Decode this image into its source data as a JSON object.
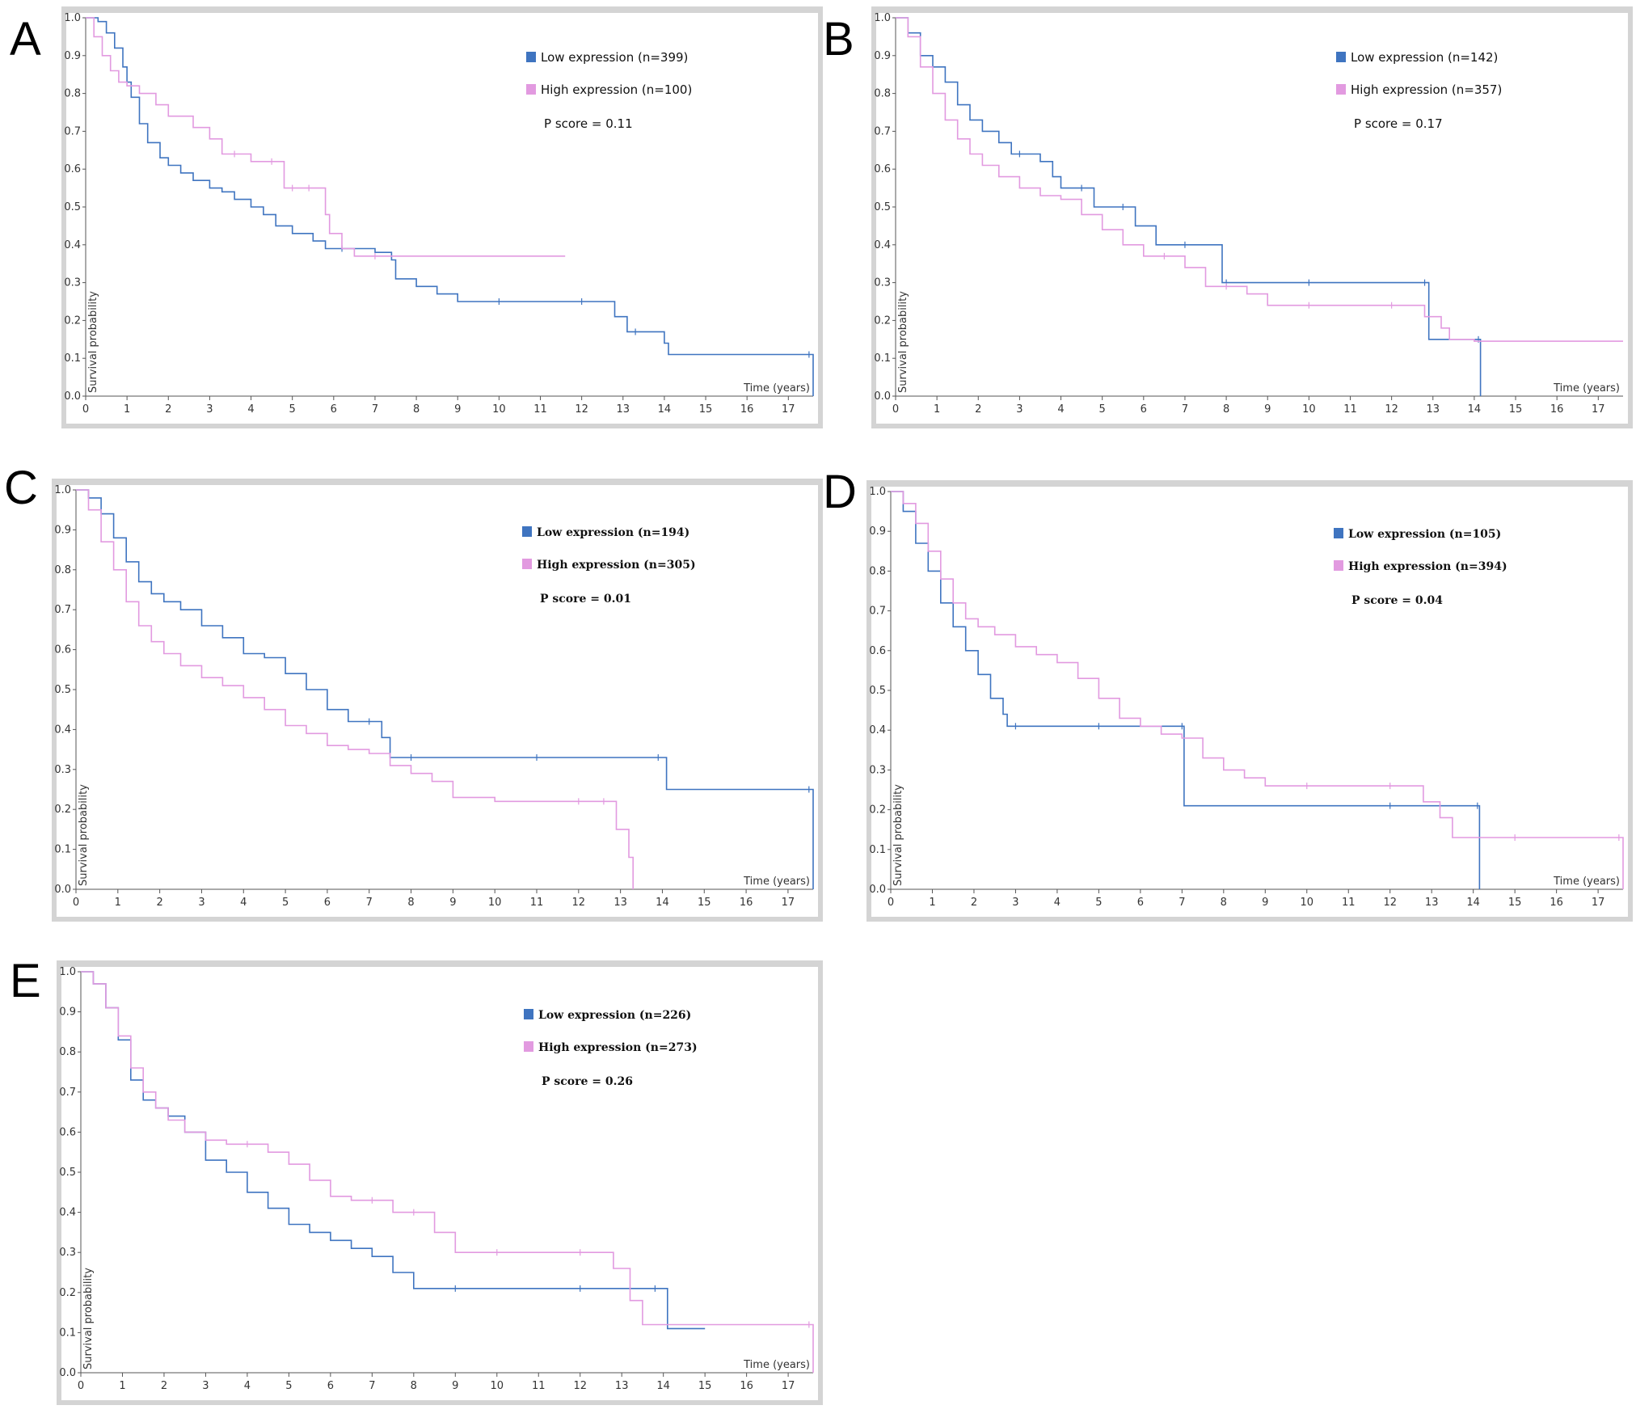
{
  "colors": {
    "low": "#3f74c0",
    "high": "#e29ae0",
    "frame": "#d4d4d4",
    "plot_bg": "#ffffff"
  },
  "chart_data": [
    {
      "panel": "A",
      "type": "line",
      "subtype": "kaplan-meier",
      "xlabel": "Time (years)",
      "ylabel": "Survival probability",
      "xlim": [
        0,
        17.6
      ],
      "ylim": [
        0,
        1
      ],
      "xticks": [
        0,
        1,
        2,
        3,
        4,
        5,
        6,
        7,
        8,
        9,
        10,
        11,
        12,
        13,
        14,
        15,
        16,
        17
      ],
      "yticks": [
        "0.0",
        "0.1",
        "0.2",
        "0.3",
        "0.4",
        "0.5",
        "0.6",
        "0.7",
        "0.8",
        "0.9",
        "1.0"
      ],
      "legend": {
        "low": "Low expression (n=399)",
        "high": "High expression (n=100)",
        "p": "P score = 0.11"
      },
      "series": [
        {
          "name": "Low expression (n=399)",
          "color_key": "low",
          "x": [
            0,
            0.3,
            0.5,
            0.7,
            0.9,
            1.0,
            1.1,
            1.3,
            1.5,
            1.8,
            2.0,
            2.3,
            2.6,
            3.0,
            3.3,
            3.6,
            4.0,
            4.3,
            4.6,
            5.0,
            5.5,
            5.8,
            6.2,
            7.0,
            7.4,
            7.5,
            8.0,
            8.5,
            9.0,
            10.0,
            12.0,
            12.8,
            13.1,
            13.3,
            14.0,
            14.1,
            17.5,
            17.6
          ],
          "y": [
            1.0,
            0.99,
            0.96,
            0.92,
            0.87,
            0.83,
            0.79,
            0.72,
            0.67,
            0.63,
            0.61,
            0.59,
            0.57,
            0.55,
            0.54,
            0.52,
            0.5,
            0.48,
            0.45,
            0.43,
            0.41,
            0.39,
            0.39,
            0.38,
            0.36,
            0.31,
            0.29,
            0.27,
            0.25,
            0.25,
            0.25,
            0.21,
            0.17,
            0.17,
            0.14,
            0.11,
            0.11,
            0.0
          ]
        },
        {
          "name": "High expression (n=100)",
          "color_key": "high",
          "x": [
            0,
            0.2,
            0.4,
            0.6,
            0.8,
            1.0,
            1.3,
            1.7,
            2.0,
            2.6,
            3.0,
            3.3,
            3.6,
            4.0,
            4.5,
            4.8,
            5.0,
            5.4,
            5.8,
            5.9,
            6.2,
            6.5,
            7.0,
            11.6
          ],
          "y": [
            1.0,
            0.95,
            0.9,
            0.86,
            0.83,
            0.82,
            0.8,
            0.77,
            0.74,
            0.71,
            0.68,
            0.64,
            0.64,
            0.62,
            0.62,
            0.55,
            0.55,
            0.55,
            0.48,
            0.43,
            0.39,
            0.37,
            0.37,
            0.37
          ]
        }
      ]
    },
    {
      "panel": "B",
      "type": "line",
      "subtype": "kaplan-meier",
      "xlabel": "Time (years)",
      "ylabel": "Survival probability",
      "xlim": [
        0,
        17.6
      ],
      "ylim": [
        0,
        1
      ],
      "xticks": [
        0,
        1,
        2,
        3,
        4,
        5,
        6,
        7,
        8,
        9,
        10,
        11,
        12,
        13,
        14,
        15,
        16,
        17
      ],
      "yticks": [
        "0.0",
        "0.1",
        "0.2",
        "0.3",
        "0.4",
        "0.5",
        "0.6",
        "0.7",
        "0.8",
        "0.9",
        "1.0"
      ],
      "legend": {
        "low": "Low expression (n=142)",
        "high": "High expression (n=357)",
        "p": "P score = 0.17"
      },
      "series": [
        {
          "name": "Low expression (n=142)",
          "color_key": "low",
          "x": [
            0,
            0.3,
            0.6,
            0.9,
            1.2,
            1.5,
            1.8,
            2.1,
            2.5,
            2.8,
            3.0,
            3.5,
            3.8,
            4.0,
            4.5,
            4.8,
            5.5,
            5.8,
            6.3,
            7.0,
            7.9,
            8.0,
            10.0,
            12.8,
            12.9,
            14.1,
            14.15
          ],
          "y": [
            1.0,
            0.96,
            0.9,
            0.87,
            0.83,
            0.77,
            0.73,
            0.7,
            0.67,
            0.64,
            0.64,
            0.62,
            0.58,
            0.55,
            0.55,
            0.5,
            0.5,
            0.45,
            0.4,
            0.4,
            0.3,
            0.3,
            0.3,
            0.3,
            0.15,
            0.15,
            0.0
          ]
        },
        {
          "name": "High expression (n=357)",
          "color_key": "high",
          "x": [
            0,
            0.3,
            0.6,
            0.9,
            1.2,
            1.5,
            1.8,
            2.1,
            2.5,
            3.0,
            3.5,
            4.0,
            4.5,
            5.0,
            5.5,
            6.0,
            6.5,
            7.0,
            7.5,
            8.0,
            8.5,
            9.0,
            10.0,
            12.0,
            12.8,
            13.2,
            13.4,
            14.0,
            17.6
          ],
          "y": [
            1.0,
            0.95,
            0.87,
            0.8,
            0.73,
            0.68,
            0.64,
            0.61,
            0.58,
            0.55,
            0.53,
            0.52,
            0.48,
            0.44,
            0.4,
            0.37,
            0.37,
            0.34,
            0.29,
            0.29,
            0.27,
            0.24,
            0.24,
            0.24,
            0.21,
            0.18,
            0.15,
            0.145,
            0.145
          ]
        }
      ]
    },
    {
      "panel": "C",
      "type": "line",
      "subtype": "kaplan-meier",
      "xlabel": "Time (years)",
      "ylabel": "Survival probability",
      "xlim": [
        0,
        17.6
      ],
      "ylim": [
        0,
        1
      ],
      "xticks": [
        0,
        1,
        2,
        3,
        4,
        5,
        6,
        7,
        8,
        9,
        10,
        11,
        12,
        13,
        14,
        15,
        16,
        17
      ],
      "yticks": [
        "0.0",
        "0.1",
        "0.2",
        "0.3",
        "0.4",
        "0.5",
        "0.6",
        "0.7",
        "0.8",
        "0.9",
        "1.0"
      ],
      "legend": {
        "low": "Low expression (n=194)",
        "high": "High expression (n=305)",
        "p": "P score = 0.01"
      },
      "series": [
        {
          "name": "Low expression (n=194)",
          "color_key": "low",
          "x": [
            0,
            0.3,
            0.6,
            0.9,
            1.2,
            1.5,
            1.8,
            2.1,
            2.5,
            3.0,
            3.5,
            4.0,
            4.5,
            5.0,
            5.5,
            6.0,
            6.5,
            7.0,
            7.3,
            7.5,
            8.0,
            11.0,
            13.9,
            14.1,
            17.5,
            17.6
          ],
          "y": [
            1.0,
            0.98,
            0.94,
            0.88,
            0.82,
            0.77,
            0.74,
            0.72,
            0.7,
            0.66,
            0.63,
            0.59,
            0.58,
            0.54,
            0.5,
            0.45,
            0.42,
            0.42,
            0.38,
            0.33,
            0.33,
            0.33,
            0.33,
            0.25,
            0.25,
            0.0
          ]
        },
        {
          "name": "High expression (n=305)",
          "color_key": "high",
          "x": [
            0,
            0.3,
            0.6,
            0.9,
            1.2,
            1.5,
            1.8,
            2.1,
            2.5,
            3.0,
            3.5,
            4.0,
            4.5,
            5.0,
            5.5,
            6.0,
            6.5,
            7.0,
            7.5,
            8.0,
            8.5,
            9.0,
            10.0,
            12.0,
            12.6,
            12.9,
            13.2,
            13.3
          ],
          "y": [
            1.0,
            0.95,
            0.87,
            0.8,
            0.72,
            0.66,
            0.62,
            0.59,
            0.56,
            0.53,
            0.51,
            0.48,
            0.45,
            0.41,
            0.39,
            0.36,
            0.35,
            0.34,
            0.31,
            0.29,
            0.27,
            0.23,
            0.22,
            0.22,
            0.22,
            0.15,
            0.08,
            0.0
          ]
        }
      ]
    },
    {
      "panel": "D",
      "type": "line",
      "subtype": "kaplan-meier",
      "xlabel": "Time (years)",
      "ylabel": "Survival probability",
      "xlim": [
        0,
        17.6
      ],
      "ylim": [
        0,
        1
      ],
      "xticks": [
        0,
        1,
        2,
        3,
        4,
        5,
        6,
        7,
        8,
        9,
        10,
        11,
        12,
        13,
        14,
        15,
        16,
        17
      ],
      "yticks": [
        "0.0",
        "0.1",
        "0.2",
        "0.3",
        "0.4",
        "0.5",
        "0.6",
        "0.7",
        "0.8",
        "0.9",
        "1.0"
      ],
      "legend": {
        "low": "Low expression (n=105)",
        "high": "High expression (n=394)",
        "p": "P score = 0.04"
      },
      "series": [
        {
          "name": "Low expression (n=105)",
          "color_key": "low",
          "x": [
            0,
            0.3,
            0.6,
            0.9,
            1.2,
            1.5,
            1.8,
            2.1,
            2.4,
            2.7,
            2.8,
            3.0,
            5.0,
            7.0,
            7.05,
            12.0,
            14.1,
            14.15
          ],
          "y": [
            1.0,
            0.95,
            0.87,
            0.8,
            0.72,
            0.66,
            0.6,
            0.54,
            0.48,
            0.44,
            0.41,
            0.41,
            0.41,
            0.41,
            0.21,
            0.21,
            0.21,
            0.0
          ]
        },
        {
          "name": "High expression (n=394)",
          "color_key": "high",
          "x": [
            0,
            0.3,
            0.6,
            0.9,
            1.2,
            1.5,
            1.8,
            2.1,
            2.5,
            3.0,
            3.5,
            4.0,
            4.5,
            5.0,
            5.5,
            6.0,
            6.5,
            7.0,
            7.5,
            8.0,
            8.5,
            9.0,
            10.0,
            12.0,
            12.8,
            13.2,
            13.5,
            15.0,
            17.5,
            17.6
          ],
          "y": [
            1.0,
            0.97,
            0.92,
            0.85,
            0.78,
            0.72,
            0.68,
            0.66,
            0.64,
            0.61,
            0.59,
            0.57,
            0.53,
            0.48,
            0.43,
            0.41,
            0.39,
            0.38,
            0.33,
            0.3,
            0.28,
            0.26,
            0.26,
            0.26,
            0.22,
            0.18,
            0.13,
            0.13,
            0.13,
            0.0
          ]
        }
      ]
    },
    {
      "panel": "E",
      "type": "line",
      "subtype": "kaplan-meier",
      "xlabel": "Time (years)",
      "ylabel": "Survival probability",
      "xlim": [
        0,
        17.6
      ],
      "ylim": [
        0,
        1
      ],
      "xticks": [
        0,
        1,
        2,
        3,
        4,
        5,
        6,
        7,
        8,
        9,
        10,
        11,
        12,
        13,
        14,
        15,
        16,
        17
      ],
      "yticks": [
        "0.0",
        "0.1",
        "0.2",
        "0.3",
        "0.4",
        "0.5",
        "0.6",
        "0.7",
        "0.8",
        "0.9",
        "1.0"
      ],
      "legend": {
        "low": "Low expression (n=226)",
        "high": "High expression (n=273)",
        "p": "P score = 0.26"
      },
      "series": [
        {
          "name": "Low expression (n=226)",
          "color_key": "low",
          "x": [
            0,
            0.3,
            0.6,
            0.9,
            1.2,
            1.5,
            1.8,
            2.1,
            2.5,
            3.0,
            3.5,
            4.0,
            4.5,
            5.0,
            5.5,
            6.0,
            6.5,
            7.0,
            7.5,
            8.0,
            9.0,
            12.0,
            13.8,
            14.1,
            15.0
          ],
          "y": [
            1.0,
            0.97,
            0.91,
            0.83,
            0.73,
            0.68,
            0.66,
            0.64,
            0.6,
            0.53,
            0.5,
            0.45,
            0.41,
            0.37,
            0.35,
            0.33,
            0.31,
            0.29,
            0.25,
            0.21,
            0.21,
            0.21,
            0.21,
            0.11,
            0.11
          ]
        },
        {
          "name": "High expression (n=273)",
          "color_key": "high",
          "x": [
            0,
            0.3,
            0.6,
            0.9,
            1.2,
            1.5,
            1.8,
            2.1,
            2.5,
            3.0,
            3.5,
            4.0,
            4.5,
            5.0,
            5.5,
            6.0,
            6.5,
            7.0,
            7.5,
            8.0,
            8.5,
            9.0,
            10.0,
            12.0,
            12.8,
            13.2,
            13.5,
            17.5,
            17.6
          ],
          "y": [
            1.0,
            0.97,
            0.91,
            0.84,
            0.76,
            0.7,
            0.66,
            0.63,
            0.6,
            0.58,
            0.57,
            0.57,
            0.55,
            0.52,
            0.48,
            0.44,
            0.43,
            0.43,
            0.4,
            0.4,
            0.35,
            0.3,
            0.3,
            0.3,
            0.26,
            0.18,
            0.12,
            0.12,
            0.0
          ]
        }
      ]
    }
  ]
}
